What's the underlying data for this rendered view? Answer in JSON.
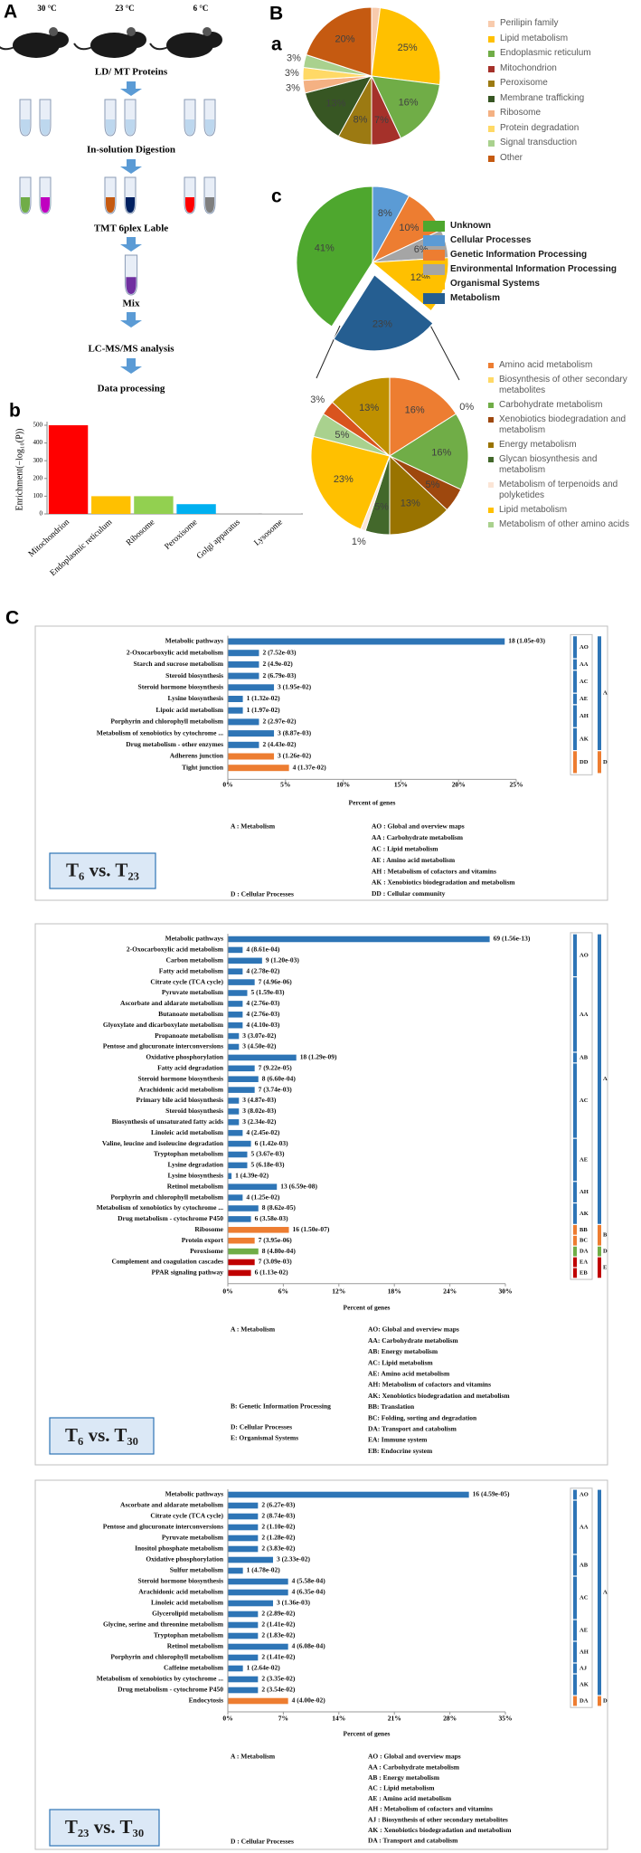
{
  "panel_labels": [
    "A",
    "B",
    "a",
    "b",
    "c",
    "C"
  ],
  "workflow": {
    "temperatures": [
      "30 °C",
      "23 °C",
      "6 °C"
    ],
    "steps": [
      "LD/ MT Proteins",
      "In-solution Digestion",
      "TMT 6plex Lable",
      "Mix",
      "LC-MS/MS analysis",
      "Data processing"
    ]
  },
  "chart_data": [
    {
      "type": "pie",
      "categories": [
        "Perilipin family",
        "Lipid metabolism",
        "Endoplasmic reticulum",
        "Mitochondrion",
        "Peroxisome",
        "Membrane trafficking",
        "Ribosome",
        "Protein degradation",
        "Signal transduction",
        "Other"
      ],
      "values": [
        2,
        25,
        16,
        7,
        8,
        13,
        3,
        3,
        3,
        20
      ],
      "value_labels": [
        "2%",
        "25%",
        "16%",
        "7%",
        "8%",
        "13%",
        "3%",
        "3%",
        "3%",
        "20%"
      ],
      "colors": [
        "#f8cbad",
        "#ffc000",
        "#70ad47",
        "#a5312a",
        "#9c7a12",
        "#375623",
        "#f4b183",
        "#ffd966",
        "#a9d18e",
        "#c55a11"
      ]
    },
    {
      "type": "bar",
      "categories": [
        "Mitochondrion",
        "Endoplasmic reticulum",
        "Ribosome",
        "Peroxisome",
        "Golgi apparatus",
        "Lysosome"
      ],
      "values": [
        500,
        100,
        100,
        55,
        3,
        2
      ],
      "colors": [
        "#ff0000",
        "#ffc000",
        "#92d050",
        "#00b0f0",
        "#a6a6a6",
        "#bfbfbf"
      ],
      "ylabel": "Enrichment(−log₁₀(P))",
      "ylim": [
        0,
        500
      ],
      "yticks": [
        0,
        100,
        200,
        300,
        400,
        500
      ]
    },
    {
      "type": "pie",
      "categories": [
        "Unknown",
        "Cellular Processes",
        "Genetic Information Processing",
        "Environmental Information Processing",
        "Organismal Systems",
        "Metabolism"
      ],
      "values": [
        41,
        8,
        10,
        6,
        12,
        23
      ],
      "value_labels": [
        "41%",
        "8%",
        "10%",
        "6%",
        "12%",
        "23%"
      ],
      "colors": [
        "#4ea72e",
        "#5b9bd5",
        "#ed7d31",
        "#a5a5a5",
        "#ffc000",
        "#255e91"
      ]
    },
    {
      "type": "pie",
      "categories": [
        "Amino acid metabolism",
        "Biosynthesis of other secondary metabolites",
        "Carbohydrate metabolism",
        "Xenobiotics biodegradation and metabolism",
        "Energy metabolism",
        "Glycan biosynthesis and metabolism",
        "Metabolism of terpenoids and polyketides",
        "Lipid metabolism",
        "Metabolism of other amino acids",
        null,
        null
      ],
      "values": [
        16,
        0,
        16,
        5,
        13,
        5,
        1,
        23,
        5,
        3,
        13
      ],
      "value_labels": [
        "16%",
        "0%",
        "16%",
        "5%",
        "13%",
        "5%",
        "1%",
        "23%",
        "5%",
        "3%",
        "13%"
      ],
      "colors": [
        "#ed7d31",
        "#ffd966",
        "#70ad47",
        "#9e480e",
        "#997300",
        "#43682b",
        "#fbe5d6",
        "#ffc000",
        "#a9d18e",
        "#d9541e",
        "#bf9000"
      ]
    },
    {
      "type": "hbar",
      "title": "T₆ vs. T₂₃",
      "categories": [
        "Metabolic pathways",
        "2-Oxocarboxylic acid metabolism",
        "Starch and sucrose metabolism",
        "Steroid biosynthesis",
        "Steroid hormone biosynthesis",
        "Lysine biosynthesis",
        "Lipoic acid metabolism",
        "Porphyrin and chlorophyll metabolism",
        "Metabolism of xenobiotics by cytochrome ...",
        "Drug metabolism - other enzymes",
        "Adherens junction",
        "Tight junction"
      ],
      "values": [
        24,
        2.7,
        2.7,
        2.7,
        4,
        1.3,
        1.3,
        2.7,
        4,
        2.7,
        4,
        5.3
      ],
      "bar_labels": [
        "18 (1.05e-03)",
        "2 (7.52e-03)",
        "2 (4.9e-02)",
        "2 (6.79e-03)",
        "3 (1.95e-02)",
        "1 (1.32e-02)",
        "1 (1.97e-02)",
        "2 (2.97e-02)",
        "3 (8.87e-03)",
        "2 (4.43e-02)",
        "3 (1.26e-02)",
        "4 (1.37e-02)"
      ],
      "category_groups": [
        "AO",
        "AO",
        "AA",
        "AC",
        "AC",
        "AE",
        "AH",
        "AH",
        "AK",
        "AK",
        "DD",
        "DD"
      ],
      "category_classes": [
        "A",
        "A",
        "A",
        "A",
        "A",
        "A",
        "A",
        "A",
        "A",
        "A",
        "D",
        "D"
      ],
      "class_colors": {
        "A": "#2e75b6",
        "D": "#ed7d31"
      },
      "xlim": [
        0,
        25
      ],
      "xticks": [
        {
          "value": 0,
          "label": "0%"
        },
        {
          "value": 5,
          "label": "5%"
        },
        {
          "value": 10,
          "label": "10%"
        },
        {
          "value": 15,
          "label": "15%"
        },
        {
          "value": 20,
          "label": "20%"
        },
        {
          "value": 25,
          "label": "25%"
        }
      ],
      "xlabel": "Percent of genes",
      "key_left": [
        "A : Metabolism",
        "D : Cellular Processes"
      ],
      "key_right": [
        "AO : Global and overview maps",
        "AA : Carbohydrate metabolism",
        "AC : Lipid metabolism",
        "AE : Amino acid metabolism",
        "AH : Metabolism of cofactors and vitamins",
        "AK : Xenobiotics biodegradation and metabolism",
        "DD : Cellular community"
      ]
    },
    {
      "type": "hbar",
      "title": "T₆ vs. T₃₀",
      "categories": [
        "Metabolic pathways",
        "2-Oxocarboxylic acid metabolism",
        "Carbon metabolism",
        "Fatty acid metabolism",
        "Citrate cycle (TCA cycle)",
        "Pyruvate metabolism",
        "Ascorbate and aldarate metabolism",
        "Butanoate metabolism",
        "Glyoxylate and dicarboxylate metabolism",
        "Propanoate metabolism",
        "Pentose and glucuronate interconversions",
        "Oxidative phosphorylation",
        "Fatty acid degradation",
        "Steroid hormone biosynthesis",
        "Arachidonic acid metabolism",
        "Primary bile acid biosynthesis",
        "Steroid biosynthesis",
        "Biosynthesis of unsaturated fatty acids",
        "Linoleic acid metabolism",
        "Valine, leucine and isoleucine degradation",
        "Tryptophan metabolism",
        "Lysine degradation",
        "Lysine biosynthesis",
        "Retinol metabolism",
        "Porphyrin and chlorophyll metabolism",
        "Metabolism of xenobiotics by cytochrome ...",
        "Drug metabolism - cytochrome P450",
        "Ribosome",
        "Protein export",
        "Peroxisome",
        "Complement and coagulation cascades",
        "PPAR signaling pathway"
      ],
      "values": [
        28.3,
        1.6,
        3.7,
        1.6,
        2.9,
        2.1,
        1.6,
        1.6,
        1.6,
        1.2,
        1.2,
        7.4,
        2.9,
        3.3,
        2.9,
        1.2,
        1.2,
        1.2,
        1.6,
        2.5,
        2.1,
        2.1,
        0.4,
        5.3,
        1.6,
        3.3,
        2.5,
        6.6,
        2.9,
        3.3,
        2.9,
        2.5
      ],
      "bar_labels": [
        "69 (1.56e-13)",
        "4 (8.61e-04)",
        "9 (1.20e-03)",
        "4 (2.78e-02)",
        "7 (4.96e-06)",
        "5 (1.59e-03)",
        "4 (2.76e-03)",
        "4 (2.76e-03)",
        "4 (4.10e-03)",
        "3 (3.07e-02)",
        "3 (4.50e-02)",
        "18 (1.29e-09)",
        "7 (9.22e-05)",
        "8 (6.60e-04)",
        "7 (3.74e-03)",
        "3 (4.87e-03)",
        "3 (8.02e-03)",
        "3 (2.34e-02)",
        "4 (2.45e-02)",
        "6 (1.42e-03)",
        "5 (3.67e-03)",
        "5 (6.18e-03)",
        "1 (4.39e-02)",
        "13 (6.59e-08)",
        "4 (1.25e-02)",
        "8 (8.62e-05)",
        "6 (3.58e-03)",
        "16 (1.50e-07)",
        "7 (3.95e-06)",
        "8 (4.80e-04)",
        "7 (3.09e-03)",
        "6 (1.13e-02)"
      ],
      "category_groups": [
        "AO",
        "AO",
        "AO",
        "AO",
        "AA",
        "AA",
        "AA",
        "AA",
        "AA",
        "AA",
        "AA",
        "AB",
        "AC",
        "AC",
        "AC",
        "AC",
        "AC",
        "AC",
        "AC",
        "AE",
        "AE",
        "AE",
        "AE",
        "AH",
        "AH",
        "AK",
        "AK",
        "BB",
        "BC",
        "DA",
        "EA",
        "EB"
      ],
      "category_classes": [
        "A",
        "A",
        "A",
        "A",
        "A",
        "A",
        "A",
        "A",
        "A",
        "A",
        "A",
        "A",
        "A",
        "A",
        "A",
        "A",
        "A",
        "A",
        "A",
        "A",
        "A",
        "A",
        "A",
        "A",
        "A",
        "A",
        "A",
        "B",
        "B",
        "D",
        "E",
        "E"
      ],
      "class_colors": {
        "A": "#2e75b6",
        "B": "#ed7d31",
        "D": "#70ad47",
        "E": "#c00000"
      },
      "xlim": [
        0,
        30
      ],
      "xticks": [
        {
          "value": 0,
          "label": "0%"
        },
        {
          "value": 6,
          "label": "6%"
        },
        {
          "value": 12,
          "label": "12%"
        },
        {
          "value": 18,
          "label": "18%"
        },
        {
          "value": 24,
          "label": "24%"
        },
        {
          "value": 30,
          "label": "30%"
        }
      ],
      "xlabel": "Percent of genes",
      "key_left": [
        "A : Metabolism",
        "B: Genetic Information Processing",
        "D: Cellular Processes",
        "E: Organismal Systems"
      ],
      "key_right": [
        "AO: Global and overview maps",
        "AA: Carbohydrate metabolism",
        "AB: Energy metabolism",
        "AC: Lipid metabolism",
        "AE: Amino acid metabolism",
        "AH: Metabolism of cofactors and vitamins",
        "AK: Xenobiotics biodegradation and metabolism",
        "BB: Translation",
        "BC: Folding, sorting and degradation",
        "DA: Transport and catabolism",
        "EA: Immune system",
        "EB: Endocrine system"
      ]
    },
    {
      "type": "hbar",
      "title": "T₂₃ vs. T₃₀",
      "categories": [
        "Metabolic pathways",
        "Ascorbate and aldarate metabolism",
        "Citrate cycle (TCA cycle)",
        "Pentose and glucuronate interconversions",
        "Pyruvate metabolism",
        "Inositol phosphate metabolism",
        "Oxidative phosphorylation",
        "Sulfur metabolism",
        "Steroid hormone biosynthesis",
        "Arachidonic acid metabolism",
        "Linoleic acid metabolism",
        "Glycerolipid metabolism",
        "Glycine, serine and threonine metabolism",
        "Tryptophan metabolism",
        "Retinol metabolism",
        "Porphyrin and chlorophyll metabolism",
        "Caffeine metabolism",
        "Metabolism of xenobiotics by cytochrome ...",
        "Drug metabolism - cytochrome P450",
        "Endocytosis"
      ],
      "values": [
        30.4,
        3.8,
        3.8,
        3.8,
        3.8,
        3.8,
        5.7,
        1.9,
        7.6,
        7.6,
        5.7,
        3.8,
        3.8,
        3.8,
        7.6,
        3.8,
        1.9,
        3.8,
        3.8,
        7.6
      ],
      "bar_labels": [
        "16 (4.59e-05)",
        "2 (6.27e-03)",
        "2 (8.74e-03)",
        "2 (1.10e-02)",
        "2 (1.28e-02)",
        "2 (3.83e-02)",
        "3 (2.33e-02)",
        "1 (4.78e-02)",
        "4 (5.58e-04)",
        "4 (6.35e-04)",
        "3 (1.36e-03)",
        "2 (2.89e-02)",
        "2 (1.41e-02)",
        "2 (1.83e-02)",
        "4 (6.08e-04)",
        "2 (1.41e-02)",
        "1 (2.64e-02)",
        "2 (3.35e-02)",
        "2 (3.54e-02)",
        "4 (4.00e-02)"
      ],
      "category_groups": [
        "AO",
        "AA",
        "AA",
        "AA",
        "AA",
        "AA",
        "AB",
        "AB",
        "AC",
        "AC",
        "AC",
        "AC",
        "AE",
        "AE",
        "AH",
        "AH",
        "AJ",
        "AK",
        "AK",
        "DA"
      ],
      "category_classes": [
        "A",
        "A",
        "A",
        "A",
        "A",
        "A",
        "A",
        "A",
        "A",
        "A",
        "A",
        "A",
        "A",
        "A",
        "A",
        "A",
        "A",
        "A",
        "A",
        "D"
      ],
      "class_colors": {
        "A": "#2e75b6",
        "D": "#ed7d31"
      },
      "xlim": [
        0,
        35
      ],
      "xticks": [
        {
          "value": 0,
          "label": "0%"
        },
        {
          "value": 7,
          "label": "7%"
        },
        {
          "value": 14,
          "label": "14%"
        },
        {
          "value": 21,
          "label": "21%"
        },
        {
          "value": 28,
          "label": "28%"
        },
        {
          "value": 35,
          "label": "35%"
        }
      ],
      "xlabel": "Percent of genes",
      "key_left": [
        "A : Metabolism",
        "D : Cellular Processes"
      ],
      "key_right": [
        "AO : Global and overview maps",
        "AA : Carbohydrate metabolism",
        "AB : Energy metabolism",
        "AC : Lipid metabolism",
        "AE : Amino acid metabolism",
        "AH : Metabolism of cofactors and vitamins",
        "AJ : Biosynthesis of other secondary metabolites",
        "AK : Xenobiotics biodegradation and metabolism",
        "DA : Transport and catabolism"
      ]
    }
  ]
}
